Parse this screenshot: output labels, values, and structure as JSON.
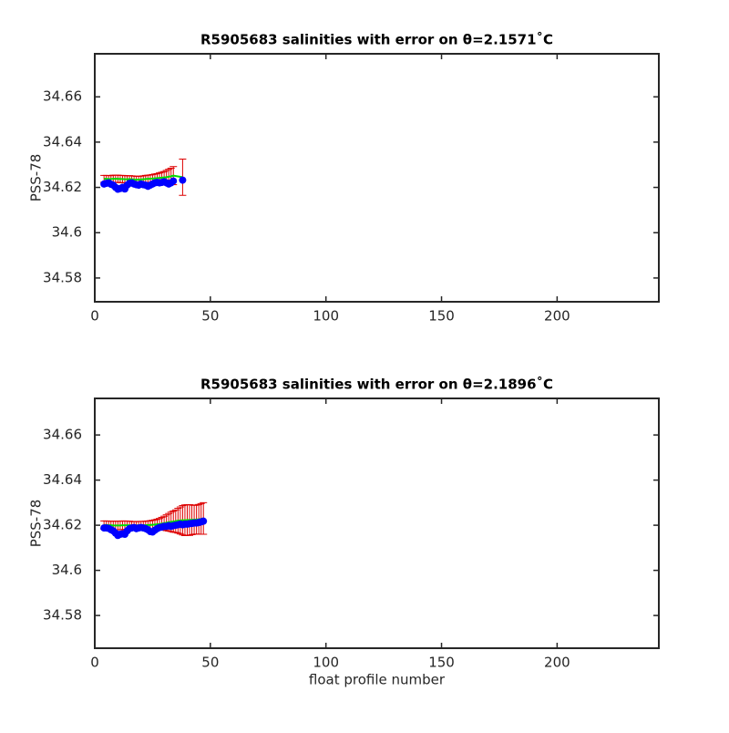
{
  "chart_data": [
    {
      "type": "scatter",
      "title": "R5905683 salinities with error on θ=2.1571˚C",
      "ylabel": "PSS-78",
      "x": [
        4,
        5,
        6,
        7,
        8,
        9,
        10,
        11,
        12,
        13,
        14,
        15,
        16,
        17,
        18,
        19,
        20,
        21,
        22,
        23,
        24,
        25,
        26,
        27,
        28,
        29,
        30,
        31,
        32,
        33,
        34,
        38
      ],
      "series": [
        {
          "color": "#0000ff",
          "marker": "circle",
          "values": [
            34.6215,
            34.6218,
            34.622,
            34.6214,
            34.621,
            34.62,
            34.6192,
            34.6195,
            34.62,
            34.6193,
            34.621,
            34.6218,
            34.622,
            34.6215,
            34.6212,
            34.621,
            34.6215,
            34.6212,
            34.621,
            34.6205,
            34.621,
            34.6215,
            34.622,
            34.6222,
            34.622,
            34.6222,
            34.6225,
            34.622,
            34.6215,
            34.622,
            34.6228,
            34.6232
          ]
        },
        {
          "color": "#00dd00",
          "error_color": "#dd0000",
          "values": [
            34.6238,
            34.6238,
            34.6237,
            34.6237,
            34.6238,
            34.6238,
            34.6238,
            34.6237,
            34.6237,
            34.6236,
            34.6236,
            34.6237,
            34.6236,
            34.6235,
            34.6234,
            34.6234,
            34.6235,
            34.6236,
            34.6237,
            34.6238,
            34.6238,
            34.6239,
            34.624,
            34.6241,
            34.6242,
            34.6243,
            34.6244,
            34.6245,
            34.6247,
            34.6249,
            34.6252,
            34.6245
          ],
          "errors": [
            0.0015,
            0.0015,
            0.0015,
            0.0015,
            0.0016,
            0.0016,
            0.0016,
            0.0016,
            0.0016,
            0.0016,
            0.0015,
            0.0015,
            0.0015,
            0.0015,
            0.0015,
            0.0015,
            0.0015,
            0.0015,
            0.0016,
            0.0016,
            0.0017,
            0.0018,
            0.0019,
            0.002,
            0.0022,
            0.0024,
            0.0026,
            0.003,
            0.0033,
            0.0036,
            0.004,
            0.008
          ]
        }
      ],
      "xlim": [
        0,
        244
      ],
      "ylim": [
        34.5695,
        34.679
      ],
      "xticks": [
        0,
        50,
        100,
        150,
        200
      ],
      "yticks": [
        34.58,
        34.6,
        34.62,
        34.64,
        34.66
      ]
    },
    {
      "type": "scatter",
      "title": "R5905683 salinities with error on θ=2.1896˚C",
      "ylabel": "PSS-78",
      "xlabel": "float profile number",
      "x": [
        4,
        5,
        6,
        7,
        8,
        9,
        10,
        11,
        12,
        13,
        14,
        15,
        16,
        17,
        18,
        19,
        20,
        21,
        22,
        23,
        24,
        25,
        26,
        27,
        28,
        29,
        30,
        31,
        32,
        33,
        34,
        35,
        36,
        37,
        38,
        39,
        40,
        41,
        42,
        43,
        44,
        45,
        46,
        47
      ],
      "series": [
        {
          "color": "#0000ff",
          "marker": "circle",
          "values": [
            34.6188,
            34.6188,
            34.6186,
            34.618,
            34.6175,
            34.6165,
            34.6155,
            34.616,
            34.6162,
            34.616,
            34.6175,
            34.6185,
            34.6188,
            34.619,
            34.6185,
            34.6188,
            34.619,
            34.6188,
            34.6185,
            34.618,
            34.6172,
            34.617,
            34.6178,
            34.6185,
            34.619,
            34.6192,
            34.6195,
            34.6195,
            34.6198,
            34.6195,
            34.6198,
            34.62,
            34.6202,
            34.6205,
            34.6202,
            34.6205,
            34.6205,
            34.6207,
            34.6208,
            34.621,
            34.621,
            34.6212,
            34.6215,
            34.6218
          ]
        },
        {
          "color": "#00dd00",
          "error_color": "#dd0000",
          "values": [
            34.6201,
            34.6201,
            34.62,
            34.62,
            34.6199,
            34.6199,
            34.6199,
            34.6199,
            34.62,
            34.62,
            34.62,
            34.62,
            34.6199,
            34.6199,
            34.6199,
            34.62,
            34.62,
            34.62,
            34.62,
            34.6201,
            34.6201,
            34.6202,
            34.6203,
            34.6204,
            34.6205,
            34.6207,
            34.6209,
            34.6211,
            34.6213,
            34.6215,
            34.6216,
            34.6218,
            34.622,
            34.6221,
            34.6222,
            34.6222,
            34.6223,
            34.6223,
            34.6224,
            34.6224,
            34.6225,
            34.6226,
            34.6228,
            34.623
          ],
          "errors": [
            0.0018,
            0.0018,
            0.0018,
            0.0018,
            0.0019,
            0.0019,
            0.0019,
            0.0019,
            0.0019,
            0.0019,
            0.0018,
            0.0018,
            0.0018,
            0.0017,
            0.0017,
            0.0017,
            0.0017,
            0.0017,
            0.0018,
            0.0018,
            0.0019,
            0.002,
            0.0021,
            0.0023,
            0.0025,
            0.0028,
            0.0031,
            0.0035,
            0.0039,
            0.0043,
            0.0047,
            0.005,
            0.0055,
            0.006,
            0.0065,
            0.0068,
            0.0068,
            0.0068,
            0.0066,
            0.0064,
            0.0064,
            0.0066,
            0.0068,
            0.007
          ]
        }
      ],
      "xlim": [
        0,
        244
      ],
      "ylim": [
        34.5655,
        34.6762
      ],
      "xticks": [
        0,
        50,
        100,
        150,
        200
      ],
      "yticks": [
        34.58,
        34.6,
        34.62,
        34.64,
        34.66
      ]
    }
  ]
}
